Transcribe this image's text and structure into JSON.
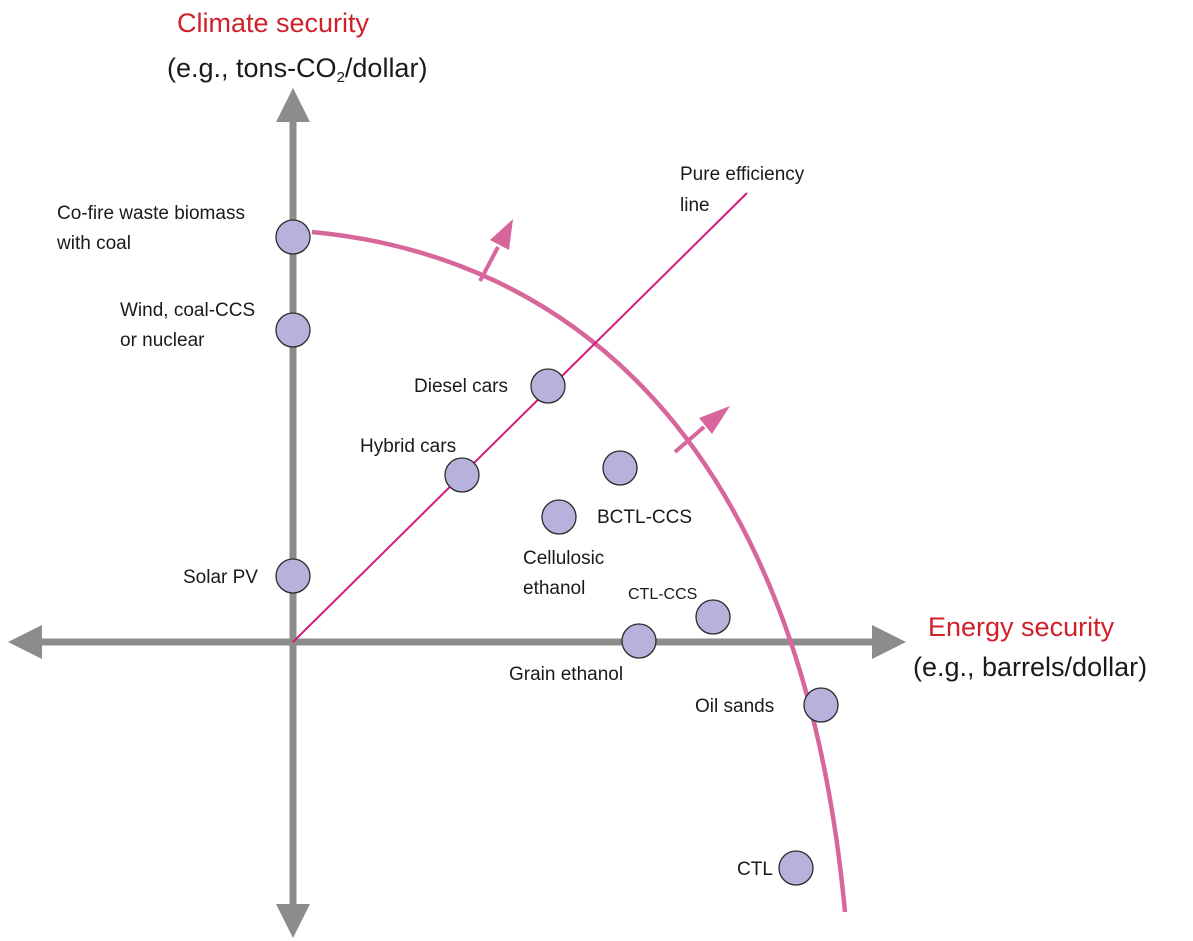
{
  "axes": {
    "y_title": "Climate security",
    "y_sub_prefix": "(e.g., tons-CO",
    "y_sub_subscript": "2",
    "y_sub_suffix": "/dollar)",
    "x_title": "Energy security",
    "x_sub": "(e.g., barrels/dollar)"
  },
  "efficiency_line": {
    "label_line1": "Pure efficiency",
    "label_line2": "line"
  },
  "points": [
    {
      "id": "cofire",
      "lines": [
        "Co-fire waste biomass",
        "with coal"
      ]
    },
    {
      "id": "wind",
      "lines": [
        "Wind, coal-CCS",
        "or nuclear"
      ]
    },
    {
      "id": "diesel",
      "lines": [
        "Diesel cars"
      ]
    },
    {
      "id": "hybrid",
      "lines": [
        "Hybrid cars"
      ]
    },
    {
      "id": "bctl",
      "lines": [
        "BCTL-CCS"
      ]
    },
    {
      "id": "cellulosic",
      "lines": [
        "Cellulosic",
        "ethanol"
      ]
    },
    {
      "id": "solar",
      "lines": [
        "Solar PV"
      ]
    },
    {
      "id": "ctlccs",
      "lines": [
        "CTL-CCS"
      ]
    },
    {
      "id": "grain",
      "lines": [
        "Grain ethanol"
      ]
    },
    {
      "id": "oilsands",
      "lines": [
        "Oil sands"
      ]
    },
    {
      "id": "ctl",
      "lines": [
        "CTL"
      ]
    }
  ],
  "colors": {
    "axis": "#8c8c8c",
    "frontier": "#d7679b",
    "efficiency": "#d4197a",
    "point_fill": "#b7b2dc",
    "title_red": "#d0202a"
  }
}
